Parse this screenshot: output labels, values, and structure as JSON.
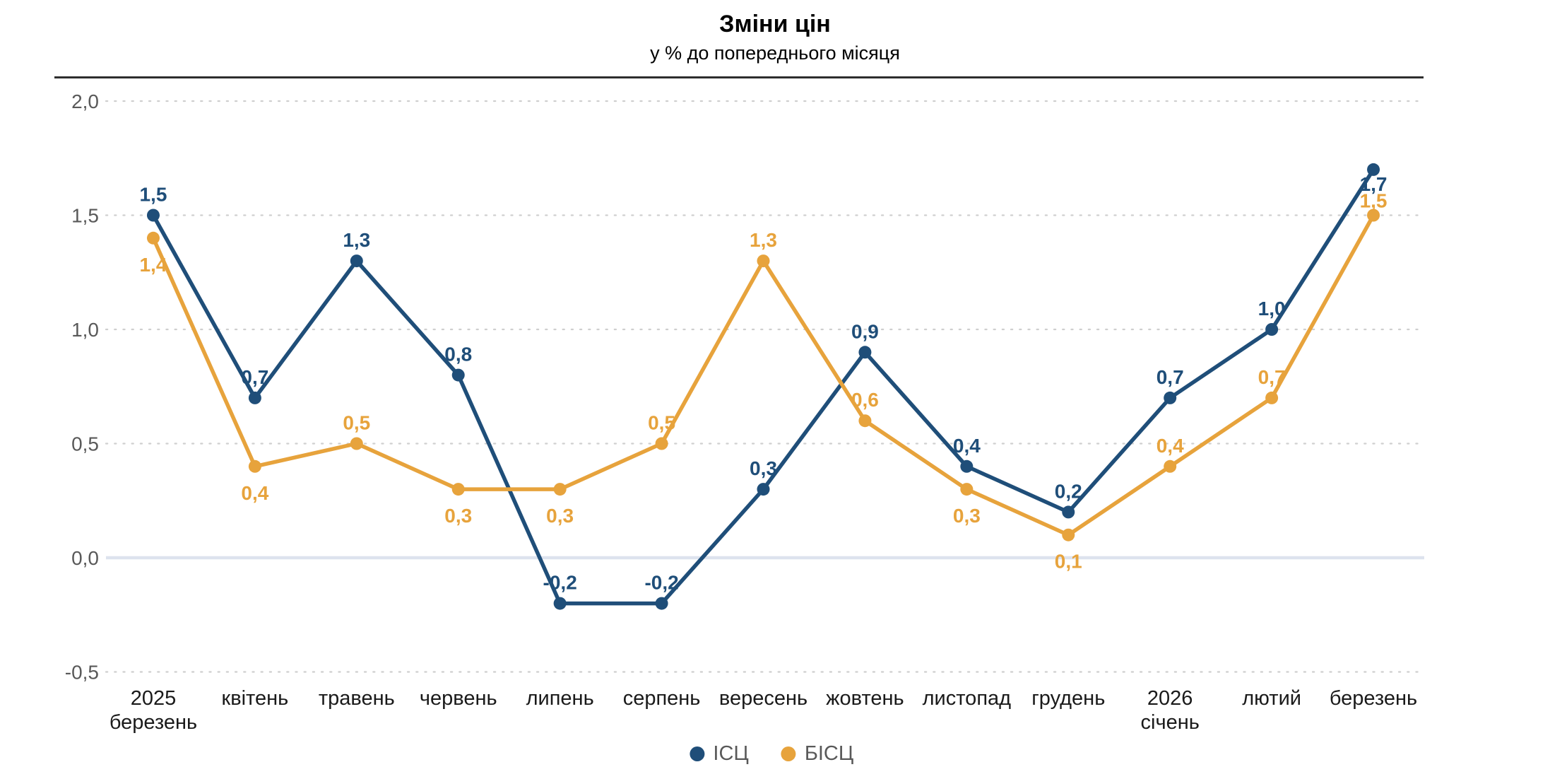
{
  "header": {
    "title": "Зміни цін",
    "subtitle": "у % до попереднього місяця"
  },
  "chart_data": {
    "type": "line",
    "categories": [
      [
        "2025",
        "березень"
      ],
      [
        "квітень"
      ],
      [
        "травень"
      ],
      [
        "червень"
      ],
      [
        "липень"
      ],
      [
        "серпень"
      ],
      [
        "вересень"
      ],
      [
        "жовтень"
      ],
      [
        "листопад"
      ],
      [
        "грудень"
      ],
      [
        "2026",
        "січень"
      ],
      [
        "лютий"
      ],
      [
        "березень"
      ]
    ],
    "series": [
      {
        "name": "ІСЦ",
        "color": "#1F4E79",
        "values": [
          1.5,
          0.7,
          1.3,
          0.8,
          -0.2,
          -0.2,
          0.3,
          0.9,
          0.4,
          0.2,
          0.7,
          1.0,
          1.7
        ],
        "labels": [
          "1,5",
          "0,7",
          "1,3",
          "0,8",
          "-0,2",
          "-0,2",
          "0,3",
          "0,9",
          "0,4",
          "0,2",
          "0,7",
          "1,0",
          "1,7"
        ],
        "label_pos": [
          "above",
          "above",
          "above",
          "above",
          "above",
          "above",
          "above",
          "above",
          "above",
          "above",
          "above",
          "above",
          "below-tight"
        ]
      },
      {
        "name": "БІСЦ",
        "color": "#E7A33C",
        "values": [
          1.4,
          0.4,
          0.5,
          0.3,
          0.3,
          0.5,
          1.3,
          0.6,
          0.3,
          0.1,
          0.4,
          0.7,
          1.5
        ],
        "labels": [
          "1,4",
          "0,4",
          "0,5",
          "0,3",
          "0,3",
          "0,5",
          "1,3",
          "0,6",
          "0,3",
          "0,1",
          "0,4",
          "0,7",
          "1,5"
        ],
        "label_pos": [
          "below",
          "below",
          "above",
          "below",
          "below",
          "above",
          "above",
          "above",
          "below",
          "below",
          "above",
          "above",
          "above-tight"
        ]
      }
    ],
    "yticks": [
      {
        "value": 2.0,
        "label": "2,0"
      },
      {
        "value": 1.5,
        "label": "1,5"
      },
      {
        "value": 1.0,
        "label": "1,0"
      },
      {
        "value": 0.5,
        "label": "0,5"
      },
      {
        "value": 0.0,
        "label": "0,0"
      },
      {
        "value": -0.5,
        "label": "-0,5"
      }
    ],
    "ylim": [
      -0.5,
      2.0
    ],
    "grid": "horizontal dotted lines, solid light line at zero",
    "legend_position": "bottom-center",
    "colors": {
      "gridline": "#cfcfcf",
      "zero_line": "#dde3ee",
      "axis_label": "#595959",
      "category_label": "#1a1a1a",
      "divider": "#2e2e2e"
    }
  }
}
